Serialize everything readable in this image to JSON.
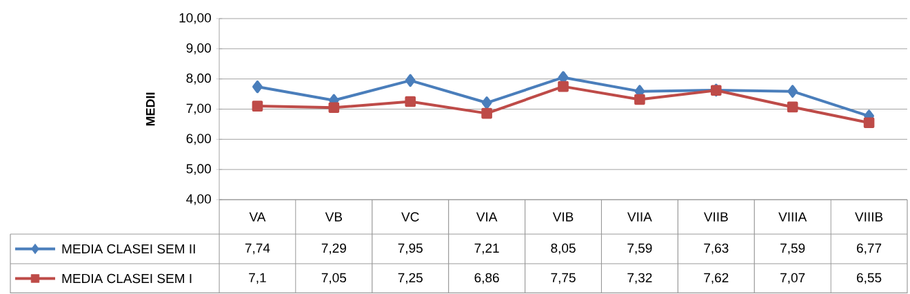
{
  "chart_data": {
    "type": "line",
    "ylabel": "MEDII",
    "categories": [
      "VA",
      "VB",
      "VC",
      "VIA",
      "VIB",
      "VIIA",
      "VIIB",
      "VIIIA",
      "VIIIB"
    ],
    "series": [
      {
        "name": "MEDIA CLASEI SEM II",
        "color": "#4a7ebb",
        "marker": "diamond",
        "values": [
          7.74,
          7.29,
          7.95,
          7.21,
          8.05,
          7.59,
          7.63,
          7.59,
          6.77
        ],
        "value_labels": [
          "7,74",
          "7,29",
          "7,95",
          "7,21",
          "8,05",
          "7,59",
          "7,63",
          "7,59",
          "6,77"
        ]
      },
      {
        "name": "MEDIA CLASEI SEM I",
        "color": "#be4b48",
        "marker": "square",
        "values": [
          7.1,
          7.05,
          7.25,
          6.86,
          7.75,
          7.32,
          7.62,
          7.07,
          6.55
        ],
        "value_labels": [
          "7,1",
          "7,05",
          "7,25",
          "6,86",
          "7,75",
          "7,32",
          "7,62",
          "7,07",
          "6,55"
        ]
      }
    ],
    "ylim": [
      4,
      10
    ],
    "yticks": [
      {
        "value": 4,
        "label": "4,00"
      },
      {
        "value": 5,
        "label": "5,00"
      },
      {
        "value": 6,
        "label": "6,00"
      },
      {
        "value": 7,
        "label": "7,00"
      },
      {
        "value": 8,
        "label": "8,00"
      },
      {
        "value": 9,
        "label": "9,00"
      },
      {
        "value": 10,
        "label": "10,00"
      }
    ],
    "grid": "y",
    "legend": "bottom left",
    "line_style": "solid"
  }
}
